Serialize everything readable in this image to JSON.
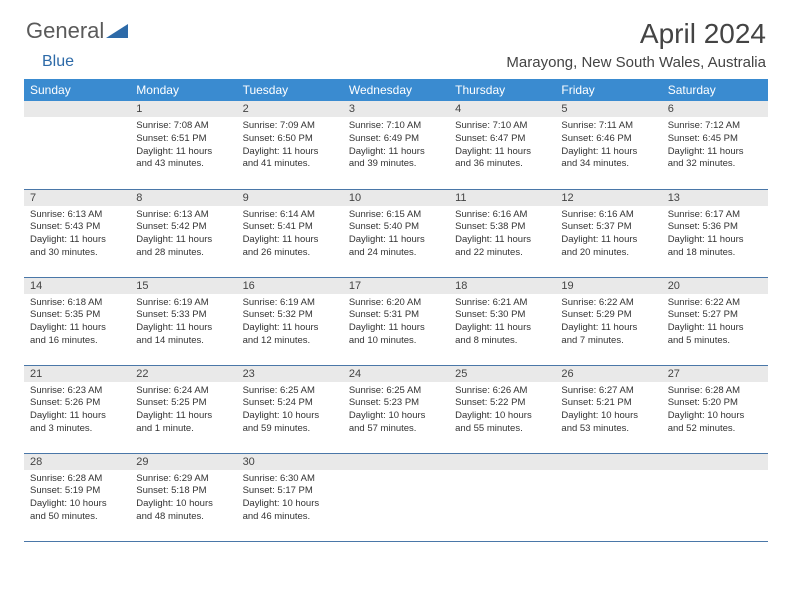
{
  "logo": {
    "text_general": "General",
    "text_blue": "Blue"
  },
  "title": "April 2024",
  "location": "Marayong, New South Wales, Australia",
  "header_color": "#3a8bd0",
  "weekday_bg": "#e9e9e9",
  "border_color": "#4a77a8",
  "weekdays": [
    "Sunday",
    "Monday",
    "Tuesday",
    "Wednesday",
    "Thursday",
    "Friday",
    "Saturday"
  ],
  "weeks": [
    [
      null,
      {
        "n": "1",
        "sr": "Sunrise: 7:08 AM",
        "ss": "Sunset: 6:51 PM",
        "dl1": "Daylight: 11 hours",
        "dl2": "and 43 minutes."
      },
      {
        "n": "2",
        "sr": "Sunrise: 7:09 AM",
        "ss": "Sunset: 6:50 PM",
        "dl1": "Daylight: 11 hours",
        "dl2": "and 41 minutes."
      },
      {
        "n": "3",
        "sr": "Sunrise: 7:10 AM",
        "ss": "Sunset: 6:49 PM",
        "dl1": "Daylight: 11 hours",
        "dl2": "and 39 minutes."
      },
      {
        "n": "4",
        "sr": "Sunrise: 7:10 AM",
        "ss": "Sunset: 6:47 PM",
        "dl1": "Daylight: 11 hours",
        "dl2": "and 36 minutes."
      },
      {
        "n": "5",
        "sr": "Sunrise: 7:11 AM",
        "ss": "Sunset: 6:46 PM",
        "dl1": "Daylight: 11 hours",
        "dl2": "and 34 minutes."
      },
      {
        "n": "6",
        "sr": "Sunrise: 7:12 AM",
        "ss": "Sunset: 6:45 PM",
        "dl1": "Daylight: 11 hours",
        "dl2": "and 32 minutes."
      }
    ],
    [
      {
        "n": "7",
        "sr": "Sunrise: 6:13 AM",
        "ss": "Sunset: 5:43 PM",
        "dl1": "Daylight: 11 hours",
        "dl2": "and 30 minutes."
      },
      {
        "n": "8",
        "sr": "Sunrise: 6:13 AM",
        "ss": "Sunset: 5:42 PM",
        "dl1": "Daylight: 11 hours",
        "dl2": "and 28 minutes."
      },
      {
        "n": "9",
        "sr": "Sunrise: 6:14 AM",
        "ss": "Sunset: 5:41 PM",
        "dl1": "Daylight: 11 hours",
        "dl2": "and 26 minutes."
      },
      {
        "n": "10",
        "sr": "Sunrise: 6:15 AM",
        "ss": "Sunset: 5:40 PM",
        "dl1": "Daylight: 11 hours",
        "dl2": "and 24 minutes."
      },
      {
        "n": "11",
        "sr": "Sunrise: 6:16 AM",
        "ss": "Sunset: 5:38 PM",
        "dl1": "Daylight: 11 hours",
        "dl2": "and 22 minutes."
      },
      {
        "n": "12",
        "sr": "Sunrise: 6:16 AM",
        "ss": "Sunset: 5:37 PM",
        "dl1": "Daylight: 11 hours",
        "dl2": "and 20 minutes."
      },
      {
        "n": "13",
        "sr": "Sunrise: 6:17 AM",
        "ss": "Sunset: 5:36 PM",
        "dl1": "Daylight: 11 hours",
        "dl2": "and 18 minutes."
      }
    ],
    [
      {
        "n": "14",
        "sr": "Sunrise: 6:18 AM",
        "ss": "Sunset: 5:35 PM",
        "dl1": "Daylight: 11 hours",
        "dl2": "and 16 minutes."
      },
      {
        "n": "15",
        "sr": "Sunrise: 6:19 AM",
        "ss": "Sunset: 5:33 PM",
        "dl1": "Daylight: 11 hours",
        "dl2": "and 14 minutes."
      },
      {
        "n": "16",
        "sr": "Sunrise: 6:19 AM",
        "ss": "Sunset: 5:32 PM",
        "dl1": "Daylight: 11 hours",
        "dl2": "and 12 minutes."
      },
      {
        "n": "17",
        "sr": "Sunrise: 6:20 AM",
        "ss": "Sunset: 5:31 PM",
        "dl1": "Daylight: 11 hours",
        "dl2": "and 10 minutes."
      },
      {
        "n": "18",
        "sr": "Sunrise: 6:21 AM",
        "ss": "Sunset: 5:30 PM",
        "dl1": "Daylight: 11 hours",
        "dl2": "and 8 minutes."
      },
      {
        "n": "19",
        "sr": "Sunrise: 6:22 AM",
        "ss": "Sunset: 5:29 PM",
        "dl1": "Daylight: 11 hours",
        "dl2": "and 7 minutes."
      },
      {
        "n": "20",
        "sr": "Sunrise: 6:22 AM",
        "ss": "Sunset: 5:27 PM",
        "dl1": "Daylight: 11 hours",
        "dl2": "and 5 minutes."
      }
    ],
    [
      {
        "n": "21",
        "sr": "Sunrise: 6:23 AM",
        "ss": "Sunset: 5:26 PM",
        "dl1": "Daylight: 11 hours",
        "dl2": "and 3 minutes."
      },
      {
        "n": "22",
        "sr": "Sunrise: 6:24 AM",
        "ss": "Sunset: 5:25 PM",
        "dl1": "Daylight: 11 hours",
        "dl2": "and 1 minute."
      },
      {
        "n": "23",
        "sr": "Sunrise: 6:25 AM",
        "ss": "Sunset: 5:24 PM",
        "dl1": "Daylight: 10 hours",
        "dl2": "and 59 minutes."
      },
      {
        "n": "24",
        "sr": "Sunrise: 6:25 AM",
        "ss": "Sunset: 5:23 PM",
        "dl1": "Daylight: 10 hours",
        "dl2": "and 57 minutes."
      },
      {
        "n": "25",
        "sr": "Sunrise: 6:26 AM",
        "ss": "Sunset: 5:22 PM",
        "dl1": "Daylight: 10 hours",
        "dl2": "and 55 minutes."
      },
      {
        "n": "26",
        "sr": "Sunrise: 6:27 AM",
        "ss": "Sunset: 5:21 PM",
        "dl1": "Daylight: 10 hours",
        "dl2": "and 53 minutes."
      },
      {
        "n": "27",
        "sr": "Sunrise: 6:28 AM",
        "ss": "Sunset: 5:20 PM",
        "dl1": "Daylight: 10 hours",
        "dl2": "and 52 minutes."
      }
    ],
    [
      {
        "n": "28",
        "sr": "Sunrise: 6:28 AM",
        "ss": "Sunset: 5:19 PM",
        "dl1": "Daylight: 10 hours",
        "dl2": "and 50 minutes."
      },
      {
        "n": "29",
        "sr": "Sunrise: 6:29 AM",
        "ss": "Sunset: 5:18 PM",
        "dl1": "Daylight: 10 hours",
        "dl2": "and 48 minutes."
      },
      {
        "n": "30",
        "sr": "Sunrise: 6:30 AM",
        "ss": "Sunset: 5:17 PM",
        "dl1": "Daylight: 10 hours",
        "dl2": "and 46 minutes."
      },
      null,
      null,
      null,
      null
    ]
  ]
}
